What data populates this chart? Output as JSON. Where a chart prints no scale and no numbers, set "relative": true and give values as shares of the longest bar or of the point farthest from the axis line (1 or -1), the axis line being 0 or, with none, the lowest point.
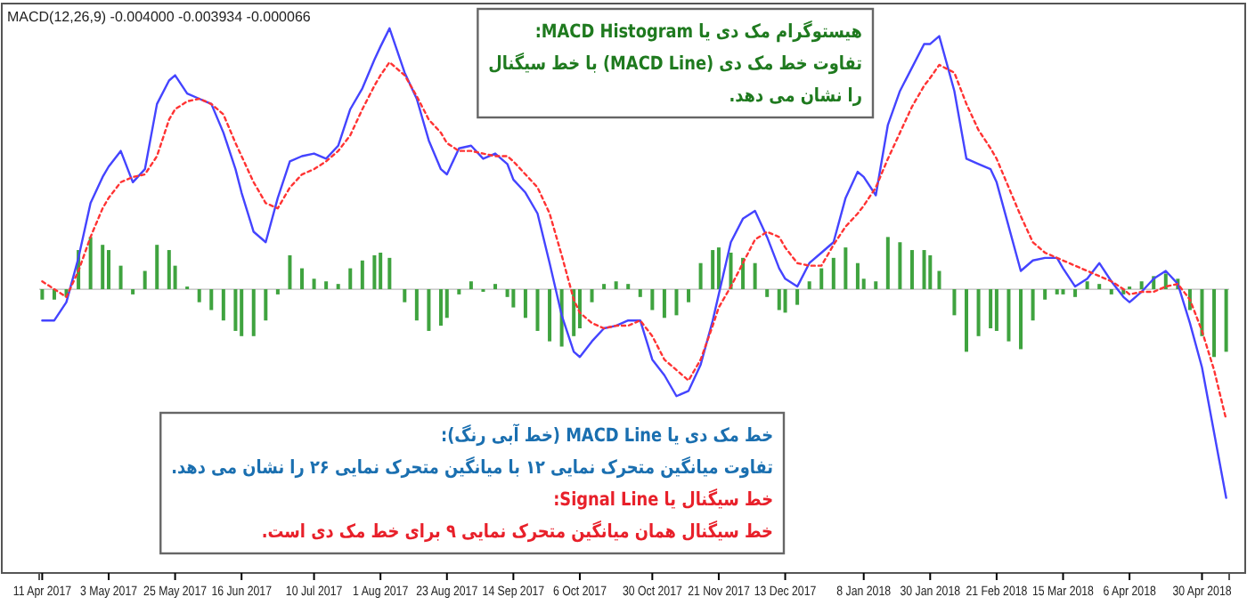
{
  "chart_data": {
    "type": "line",
    "title": "MACD(12,26,9) -0.004000 -0.003934 -0.000066",
    "relative": true,
    "grid": false,
    "annotations": [
      "هیستوگرام مک دی یا MACD Histogram:",
      "تفاوت خط مک دی (MACD Line) با خط سیگنال",
      "را نشان می دهد.",
      "خط مک دی یا MACD Line (خط آبی رنگ):",
      "تفاوت میانگین متحرک نمایی ۱۲ با میانگین متحرک نمایی ۲۶ را نشان می دهد.",
      "خط سیگنال یا Signal Line:",
      "خط سیگنال همان میانگین متحرک نمایی ۹ برای خط مک دی است."
    ],
    "xlim": [
      "2017-04-10",
      "2018-05-09"
    ],
    "xticks": [
      {
        "value": "2017-04-11",
        "label": "11 Apr 2017"
      },
      {
        "value": "2017-05-03",
        "label": "3 May 2017"
      },
      {
        "value": "2017-05-25",
        "label": "25 May 2017"
      },
      {
        "value": "2017-06-16",
        "label": "16 Jun 2017"
      },
      {
        "value": "2017-07-10",
        "label": "10 Jul 2017"
      },
      {
        "value": "2017-08-01",
        "label": "1 Aug 2017"
      },
      {
        "value": "2017-08-23",
        "label": "23 Aug 2017"
      },
      {
        "value": "2017-09-14",
        "label": "14 Sep 2017"
      },
      {
        "value": "2017-10-06",
        "label": "6 Oct 2017"
      },
      {
        "value": "2017-10-30",
        "label": "30 Oct 2017"
      },
      {
        "value": "2017-11-21",
        "label": "21 Nov 2017"
      },
      {
        "value": "2017-12-13",
        "label": "13 Dec 2017"
      },
      {
        "value": "2018-01-08",
        "label": "8 Jan 2018"
      },
      {
        "value": "2018-01-30",
        "label": "30 Jan 2018"
      },
      {
        "value": "2018-02-21",
        "label": "21 Feb 2018"
      },
      {
        "value": "2018-03-15",
        "label": "15 Mar 2018"
      },
      {
        "value": "2018-04-06",
        "label": "6 Apr 2018"
      },
      {
        "value": "2018-04-30",
        "label": "30 Apr 2018"
      }
    ],
    "x": [
      "2017-04-11",
      "2017-04-15",
      "2017-04-19",
      "2017-04-23",
      "2017-04-27",
      "2017-05-01",
      "2017-05-03",
      "2017-05-07",
      "2017-05-11",
      "2017-05-15",
      "2017-05-19",
      "2017-05-23",
      "2017-05-25",
      "2017-05-29",
      "2017-06-02",
      "2017-06-06",
      "2017-06-10",
      "2017-06-14",
      "2017-06-16",
      "2017-06-20",
      "2017-06-24",
      "2017-06-28",
      "2017-07-02",
      "2017-07-06",
      "2017-07-10",
      "2017-07-14",
      "2017-07-18",
      "2017-07-22",
      "2017-07-26",
      "2017-07-30",
      "2017-08-01",
      "2017-08-04",
      "2017-08-09",
      "2017-08-13",
      "2017-08-17",
      "2017-08-21",
      "2017-08-23",
      "2017-08-27",
      "2017-08-31",
      "2017-09-04",
      "2017-09-08",
      "2017-09-12",
      "2017-09-14",
      "2017-09-18",
      "2017-09-22",
      "2017-09-26",
      "2017-09-30",
      "2017-10-04",
      "2017-10-06",
      "2017-10-10",
      "2017-10-14",
      "2017-10-18",
      "2017-10-22",
      "2017-10-26",
      "2017-10-30",
      "2017-11-03",
      "2017-11-07",
      "2017-11-11",
      "2017-11-15",
      "2017-11-19",
      "2017-11-21",
      "2017-11-25",
      "2017-11-29",
      "2017-12-03",
      "2017-12-07",
      "2017-12-11",
      "2017-12-13",
      "2017-12-17",
      "2017-12-21",
      "2017-12-25",
      "2017-12-29",
      "2018-01-02",
      "2018-01-06",
      "2018-01-08",
      "2018-01-12",
      "2018-01-16",
      "2018-01-20",
      "2018-01-24",
      "2018-01-28",
      "2018-01-30",
      "2018-02-02",
      "2018-02-07",
      "2018-02-11",
      "2018-02-15",
      "2018-02-19",
      "2018-02-21",
      "2018-02-25",
      "2018-03-01",
      "2018-03-05",
      "2018-03-09",
      "2018-03-13",
      "2018-03-15",
      "2018-03-19",
      "2018-03-23",
      "2018-03-27",
      "2018-03-31",
      "2018-04-04",
      "2018-04-06",
      "2018-04-10",
      "2018-04-14",
      "2018-04-18",
      "2018-04-22",
      "2018-04-26",
      "2018-04-30",
      "2018-05-04",
      "2018-05-08"
    ],
    "series": [
      {
        "type": "bar",
        "color": "#3fa33f",
        "values": [
          -0.04,
          -0.04,
          -0.03,
          0.15,
          0.2,
          0.17,
          0.15,
          0.09,
          -0.02,
          0.07,
          0.17,
          0.15,
          0.09,
          0.01,
          -0.05,
          -0.08,
          -0.12,
          -0.16,
          -0.18,
          -0.18,
          -0.12,
          -0.02,
          0.13,
          0.08,
          0.04,
          0.03,
          0.02,
          0.08,
          0.11,
          0.13,
          0.14,
          0.12,
          -0.05,
          -0.12,
          -0.16,
          -0.14,
          -0.11,
          -0.02,
          0.03,
          -0.01,
          0.02,
          -0.03,
          -0.07,
          -0.11,
          -0.16,
          -0.2,
          -0.22,
          -0.18,
          -0.15,
          -0.05,
          0.02,
          0.03,
          0.02,
          -0.03,
          -0.08,
          -0.11,
          -0.1,
          -0.05,
          0.1,
          0.15,
          0.16,
          0.14,
          0.12,
          0.1,
          -0.03,
          -0.08,
          -0.09,
          -0.06,
          0.03,
          0.08,
          0.12,
          0.16,
          0.1,
          0.04,
          0.03,
          0.2,
          0.18,
          0.15,
          0.15,
          0.13,
          0.07,
          -0.1,
          -0.24,
          -0.18,
          -0.15,
          -0.16,
          -0.2,
          -0.23,
          -0.12,
          -0.04,
          -0.02,
          -0.02,
          -0.03,
          0.03,
          0.02,
          -0.02,
          -0.02,
          0.01,
          0.03,
          0.05,
          0.06,
          0.04,
          -0.08,
          -0.18,
          -0.26,
          -0.24
        ]
      },
      {
        "color": "#4444ff",
        "values": [
          -0.12,
          -0.12,
          -0.05,
          0.12,
          0.33,
          0.43,
          0.47,
          0.53,
          0.41,
          0.46,
          0.71,
          0.8,
          0.82,
          0.75,
          0.73,
          0.71,
          0.6,
          0.46,
          0.37,
          0.22,
          0.18,
          0.35,
          0.49,
          0.51,
          0.52,
          0.5,
          0.55,
          0.69,
          0.77,
          0.88,
          0.93,
          1,
          0.83,
          0.73,
          0.57,
          0.46,
          0.44,
          0.54,
          0.55,
          0.5,
          0.52,
          0.48,
          0.42,
          0.37,
          0.29,
          0.1,
          -0.1,
          -0.24,
          -0.26,
          -0.2,
          -0.15,
          -0.14,
          -0.12,
          -0.12,
          -0.27,
          -0.33,
          -0.41,
          -0.39,
          -0.29,
          -0.12,
          -0.02,
          0.18,
          0.27,
          0.3,
          0.2,
          0.08,
          0.04,
          0.01,
          0.1,
          0.14,
          0.18,
          0.35,
          0.45,
          0.43,
          0.36,
          0.63,
          0.76,
          0.85,
          0.94,
          0.94,
          0.97,
          0.76,
          0.5,
          0.48,
          0.46,
          0.41,
          0.24,
          0.07,
          0.11,
          0.12,
          0.12,
          0.08,
          0.01,
          0.04,
          0.1,
          0.03,
          -0.03,
          -0.05,
          -0.01,
          0.04,
          0.07,
          0.02,
          -0.13,
          -0.3,
          -0.55,
          -0.8
        ]
      },
      {
        "color": "#ff3333",
        "line_style": "dotted",
        "values": [
          0.03,
          0.0,
          -0.03,
          0.07,
          0.2,
          0.31,
          0.35,
          0.41,
          0.43,
          0.44,
          0.51,
          0.65,
          0.69,
          0.72,
          0.73,
          0.71,
          0.67,
          0.56,
          0.51,
          0.41,
          0.33,
          0.31,
          0.39,
          0.44,
          0.46,
          0.49,
          0.53,
          0.59,
          0.69,
          0.78,
          0.82,
          0.87,
          0.82,
          0.74,
          0.65,
          0.6,
          0.56,
          0.53,
          0.53,
          0.52,
          0.51,
          0.51,
          0.49,
          0.44,
          0.39,
          0.29,
          0.13,
          -0.04,
          -0.09,
          -0.13,
          -0.15,
          -0.14,
          -0.14,
          -0.12,
          -0.18,
          -0.27,
          -0.31,
          -0.35,
          -0.27,
          -0.14,
          -0.07,
          0.01,
          0.1,
          0.19,
          0.22,
          0.2,
          0.16,
          0.1,
          0.09,
          0.09,
          0.17,
          0.24,
          0.29,
          0.32,
          0.39,
          0.5,
          0.6,
          0.7,
          0.78,
          0.81,
          0.86,
          0.83,
          0.71,
          0.61,
          0.54,
          0.5,
          0.39,
          0.28,
          0.18,
          0.14,
          0.12,
          0.11,
          0.09,
          0.07,
          0.05,
          0.03,
          0.0,
          -0.02,
          -0.01,
          -0.01,
          0.01,
          0.02,
          -0.04,
          -0.16,
          -0.31,
          -0.5
        ]
      }
    ]
  }
}
